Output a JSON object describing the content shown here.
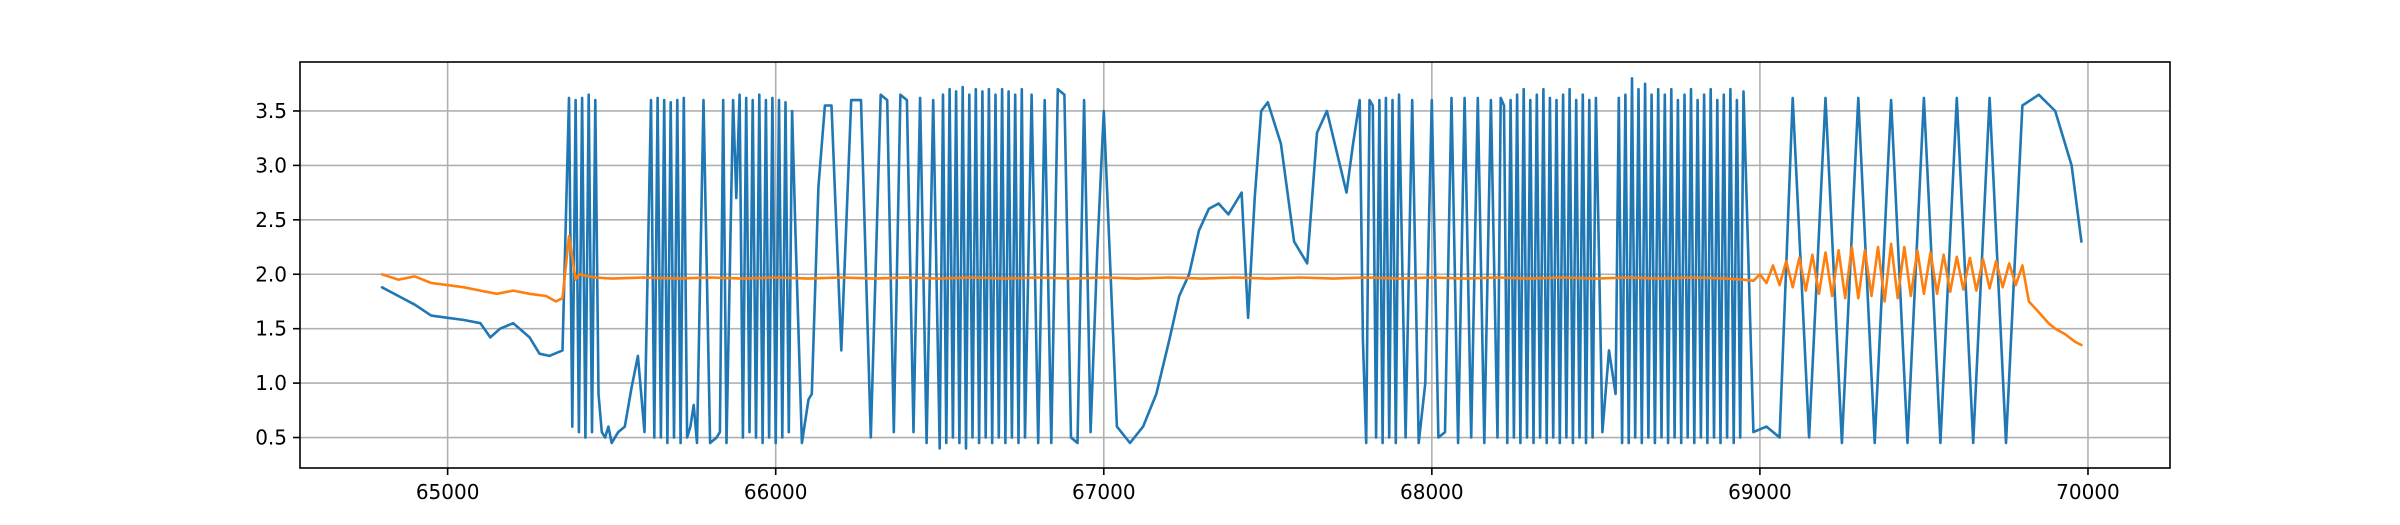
{
  "chart_data": {
    "type": "line",
    "title": "",
    "xlabel": "",
    "ylabel": "",
    "xlim": [
      64550,
      70250
    ],
    "ylim": [
      0.22,
      3.95
    ],
    "x_ticks": [
      65000,
      66000,
      67000,
      68000,
      69000,
      70000
    ],
    "y_ticks": [
      0.5,
      1.0,
      1.5,
      2.0,
      2.5,
      3.0,
      3.5
    ],
    "x_tick_labels": [
      "65000",
      "66000",
      "67000",
      "68000",
      "69000",
      "70000"
    ],
    "y_tick_labels": [
      "0.5",
      "1.0",
      "1.5",
      "2.0",
      "2.5",
      "3.0",
      "3.5"
    ],
    "grid": true,
    "legend": "none",
    "series": [
      {
        "color": "#1f77b4",
        "x": [
          64800,
          64850,
          64900,
          64950,
          65000,
          65050,
          65100,
          65130,
          65160,
          65200,
          65250,
          65280,
          65310,
          65350,
          65370,
          65380,
          65390,
          65400,
          65410,
          65420,
          65430,
          65440,
          65450,
          65460,
          65470,
          65480,
          65490,
          65500,
          65520,
          65540,
          65560,
          65580,
          65600,
          65620,
          65630,
          65640,
          65650,
          65660,
          65670,
          65680,
          65690,
          65700,
          65710,
          65720,
          65730,
          65740,
          65750,
          65760,
          65780,
          65800,
          65820,
          65830,
          65840,
          65850,
          65870,
          65880,
          65890,
          65900,
          65910,
          65920,
          65930,
          65940,
          65950,
          65960,
          65970,
          65980,
          65990,
          66000,
          66010,
          66020,
          66030,
          66040,
          66050,
          66060,
          66080,
          66100,
          66110,
          66130,
          66150,
          66170,
          66200,
          66230,
          66260,
          66290,
          66320,
          66340,
          66360,
          66380,
          66400,
          66420,
          66440,
          66460,
          66480,
          66500,
          66510,
          66520,
          66530,
          66540,
          66550,
          66560,
          66570,
          66580,
          66590,
          66600,
          66610,
          66620,
          66630,
          66640,
          66650,
          66660,
          66670,
          66680,
          66690,
          66700,
          66710,
          66720,
          66730,
          66740,
          66750,
          66760,
          66780,
          66800,
          66820,
          66840,
          66860,
          66880,
          66900,
          66920,
          66940,
          66960,
          66980,
          67000,
          67040,
          67080,
          67120,
          67160,
          67200,
          67230,
          67260,
          67290,
          67320,
          67350,
          67380,
          67400,
          67420,
          67440,
          67460,
          67480,
          67500,
          67540,
          67580,
          67620,
          67650,
          67680,
          67720,
          67740,
          67760,
          67780,
          67790,
          67800,
          67810,
          67820,
          67830,
          67840,
          67850,
          67860,
          67870,
          67880,
          67890,
          67900,
          67920,
          67940,
          67960,
          67980,
          68000,
          68020,
          68040,
          68060,
          68080,
          68100,
          68120,
          68140,
          68160,
          68180,
          68200,
          68210,
          68220,
          68230,
          68240,
          68250,
          68260,
          68270,
          68280,
          68290,
          68300,
          68310,
          68320,
          68330,
          68340,
          68350,
          68360,
          68370,
          68380,
          68390,
          68400,
          68410,
          68420,
          68430,
          68440,
          68450,
          68460,
          68470,
          68480,
          68490,
          68500,
          68520,
          68540,
          68560,
          68570,
          68580,
          68590,
          68600,
          68610,
          68620,
          68630,
          68640,
          68650,
          68660,
          68670,
          68680,
          68690,
          68700,
          68710,
          68720,
          68730,
          68740,
          68750,
          68760,
          68770,
          68780,
          68790,
          68800,
          68810,
          68820,
          68830,
          68840,
          68850,
          68860,
          68870,
          68880,
          68890,
          68900,
          68910,
          68920,
          68930,
          68940,
          68950,
          68980,
          69020,
          69060,
          69100,
          69150,
          69200,
          69250,
          69300,
          69350,
          69400,
          69450,
          69500,
          69550,
          69600,
          69650,
          69700,
          69750,
          69800,
          69850,
          69900,
          69950,
          69980
        ],
        "y": [
          1.88,
          1.8,
          1.72,
          1.62,
          1.6,
          1.58,
          1.55,
          1.42,
          1.5,
          1.55,
          1.42,
          1.27,
          1.25,
          1.3,
          3.62,
          0.6,
          3.6,
          0.55,
          3.62,
          0.5,
          3.65,
          0.55,
          3.6,
          0.9,
          0.55,
          0.5,
          0.6,
          0.45,
          0.55,
          0.6,
          0.95,
          1.25,
          0.55,
          3.6,
          0.5,
          3.62,
          0.5,
          3.6,
          0.45,
          3.58,
          0.5,
          3.6,
          0.45,
          3.62,
          0.5,
          0.6,
          0.8,
          0.45,
          3.6,
          0.45,
          0.5,
          0.55,
          3.6,
          0.45,
          3.6,
          2.7,
          3.65,
          0.5,
          3.62,
          0.55,
          3.6,
          0.5,
          3.65,
          0.45,
          3.6,
          0.5,
          3.62,
          0.45,
          3.6,
          0.5,
          3.58,
          0.55,
          3.5,
          2.4,
          0.45,
          0.85,
          0.9,
          2.8,
          3.55,
          3.55,
          1.3,
          3.6,
          3.6,
          0.5,
          3.65,
          3.6,
          0.55,
          3.65,
          3.6,
          0.55,
          3.62,
          0.45,
          3.6,
          0.4,
          3.65,
          0.45,
          3.7,
          0.5,
          3.68,
          0.45,
          3.72,
          0.4,
          3.65,
          0.5,
          3.7,
          0.45,
          3.68,
          0.5,
          3.7,
          0.45,
          3.65,
          0.5,
          3.7,
          0.45,
          3.68,
          0.5,
          3.65,
          0.45,
          3.7,
          0.5,
          3.65,
          0.45,
          3.6,
          0.45,
          3.7,
          3.65,
          0.5,
          0.45,
          3.6,
          0.55,
          2.2,
          3.5,
          0.6,
          0.45,
          0.6,
          0.9,
          1.4,
          1.8,
          2.0,
          2.4,
          2.6,
          2.65,
          2.55,
          2.65,
          2.75,
          1.6,
          2.7,
          3.5,
          3.58,
          3.2,
          2.3,
          2.1,
          3.3,
          3.5,
          3.0,
          2.75,
          3.2,
          3.6,
          1.4,
          0.45,
          3.6,
          3.55,
          0.5,
          3.6,
          0.45,
          3.62,
          0.5,
          3.6,
          0.45,
          3.65,
          0.5,
          3.6,
          0.45,
          1.0,
          3.6,
          0.5,
          0.55,
          3.62,
          0.45,
          3.62,
          0.5,
          3.62,
          0.45,
          3.6,
          0.5,
          3.62,
          3.55,
          0.45,
          3.6,
          0.5,
          3.65,
          0.45,
          3.7,
          0.5,
          3.6,
          0.45,
          3.65,
          0.5,
          3.7,
          0.45,
          3.62,
          0.5,
          3.6,
          0.45,
          3.65,
          0.5,
          3.7,
          0.45,
          3.6,
          0.5,
          3.65,
          0.45,
          3.6,
          0.5,
          3.62,
          0.55,
          1.3,
          0.9,
          3.62,
          0.45,
          3.65,
          0.45,
          3.8,
          0.5,
          3.7,
          0.45,
          3.75,
          0.5,
          3.65,
          0.45,
          3.7,
          0.5,
          3.65,
          0.45,
          3.7,
          0.5,
          3.6,
          0.45,
          3.65,
          0.5,
          3.7,
          0.45,
          3.6,
          0.5,
          3.65,
          0.45,
          3.7,
          0.5,
          3.6,
          0.45,
          3.65,
          0.5,
          3.7,
          0.45,
          3.6,
          0.5,
          3.68,
          0.55,
          0.6,
          0.5,
          3.62,
          0.5,
          3.62,
          0.45,
          3.62,
          0.45,
          3.6,
          0.45,
          3.62,
          0.45,
          3.62,
          0.45,
          3.62,
          0.45,
          3.55,
          3.65,
          3.5,
          3.0,
          2.3
        ]
      },
      {
        "color": "#ff7f0e",
        "x": [
          64800,
          64850,
          64900,
          64950,
          65000,
          65050,
          65100,
          65150,
          65200,
          65250,
          65300,
          65330,
          65350,
          65370,
          65390,
          65400,
          65450,
          65500,
          65600,
          65700,
          65800,
          65900,
          66000,
          66100,
          66200,
          66300,
          66400,
          66500,
          66600,
          66700,
          66800,
          66900,
          67000,
          67100,
          67200,
          67300,
          67400,
          67500,
          67600,
          67700,
          67800,
          67900,
          68000,
          68100,
          68200,
          68300,
          68400,
          68500,
          68600,
          68700,
          68800,
          68900,
          68950,
          68980,
          69000,
          69020,
          69040,
          69060,
          69080,
          69100,
          69120,
          69140,
          69160,
          69180,
          69200,
          69220,
          69240,
          69260,
          69280,
          69300,
          69320,
          69340,
          69360,
          69380,
          69400,
          69420,
          69440,
          69460,
          69480,
          69500,
          69520,
          69540,
          69560,
          69580,
          69600,
          69620,
          69640,
          69660,
          69680,
          69700,
          69720,
          69740,
          69760,
          69780,
          69800,
          69820,
          69850,
          69880,
          69900,
          69930,
          69960,
          69980
        ],
        "y": [
          2.0,
          1.95,
          1.98,
          1.92,
          1.9,
          1.88,
          1.85,
          1.82,
          1.85,
          1.82,
          1.8,
          1.75,
          1.78,
          2.35,
          1.95,
          2.0,
          1.97,
          1.96,
          1.97,
          1.96,
          1.97,
          1.96,
          1.97,
          1.96,
          1.97,
          1.96,
          1.97,
          1.96,
          1.97,
          1.96,
          1.97,
          1.96,
          1.97,
          1.96,
          1.97,
          1.96,
          1.97,
          1.96,
          1.97,
          1.96,
          1.97,
          1.96,
          1.97,
          1.96,
          1.97,
          1.96,
          1.97,
          1.96,
          1.97,
          1.96,
          1.97,
          1.96,
          1.95,
          1.94,
          2.0,
          1.92,
          2.08,
          1.9,
          2.12,
          1.88,
          2.15,
          1.85,
          2.18,
          1.82,
          2.2,
          1.8,
          2.22,
          1.78,
          2.25,
          1.78,
          2.22,
          1.8,
          2.25,
          1.75,
          2.28,
          1.78,
          2.25,
          1.8,
          2.22,
          1.82,
          2.2,
          1.82,
          2.18,
          1.84,
          2.16,
          1.86,
          2.15,
          1.85,
          2.14,
          1.87,
          2.12,
          1.88,
          2.1,
          1.9,
          2.08,
          1.75,
          1.65,
          1.55,
          1.5,
          1.45,
          1.38,
          1.35
        ]
      }
    ]
  }
}
